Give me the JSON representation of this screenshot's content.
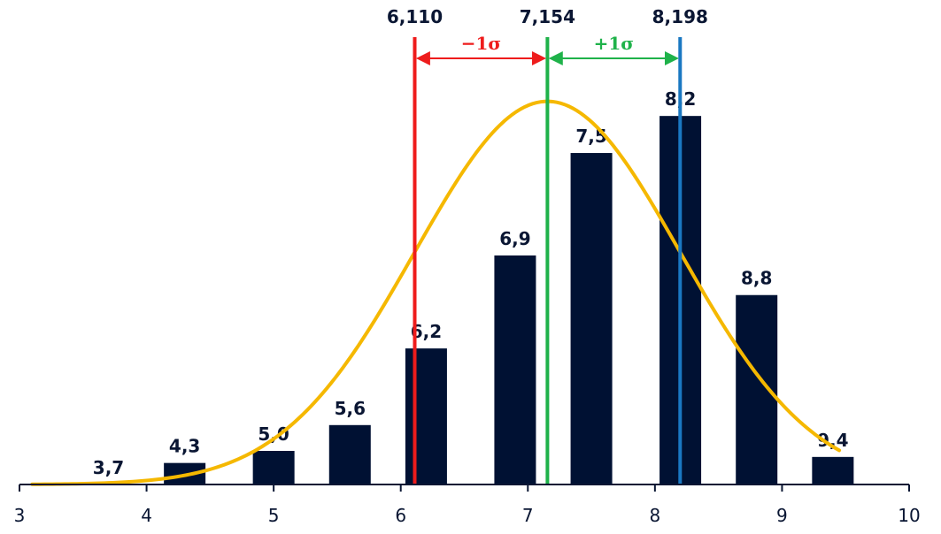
{
  "chart_data": {
    "type": "bar",
    "x_axis": {
      "min": 3,
      "max": 10,
      "ticks": [
        3,
        4,
        5,
        6,
        7,
        8,
        9,
        10
      ]
    },
    "bars": [
      {
        "x": 3.7,
        "label": "3,7",
        "height": 0.0
      },
      {
        "x": 4.3,
        "label": "4,3",
        "height": 0.25
      },
      {
        "x": 5.0,
        "label": "5,0",
        "height": 0.39
      },
      {
        "x": 5.6,
        "label": "5,6",
        "height": 0.69
      },
      {
        "x": 6.2,
        "label": "6,2",
        "height": 1.58
      },
      {
        "x": 6.9,
        "label": "6,9",
        "height": 2.66
      },
      {
        "x": 7.5,
        "label": "7,5",
        "height": 3.85
      },
      {
        "x": 8.2,
        "label": "8,2",
        "height": 4.28
      },
      {
        "x": 8.8,
        "label": "8,8",
        "height": 2.2
      },
      {
        "x": 9.4,
        "label": "9,4",
        "height": 0.32
      }
    ],
    "y_range": [
      0,
      4.6
    ],
    "normal_curve": {
      "mean": 7.154,
      "sd": 1.044,
      "peak": 4.45,
      "x_range": [
        3.1,
        9.45
      ]
    },
    "vertical_lines": [
      {
        "x": 6.11,
        "label": "6,110",
        "color": "#ee1c1c"
      },
      {
        "x": 7.154,
        "label": "7,154",
        "color": "#1fb24a"
      },
      {
        "x": 8.198,
        "label": "8,198",
        "color": "#1a78c2"
      }
    ],
    "sigma_annotations": [
      {
        "from": 6.11,
        "to": 7.154,
        "label": "−1σ",
        "color": "#ee1c1c"
      },
      {
        "from": 7.154,
        "to": 8.198,
        "label": "+1σ",
        "color": "#1fb24a"
      }
    ],
    "colors": {
      "bar": "#001133",
      "curve": "#f5b800",
      "axis": "#0a1633"
    }
  }
}
